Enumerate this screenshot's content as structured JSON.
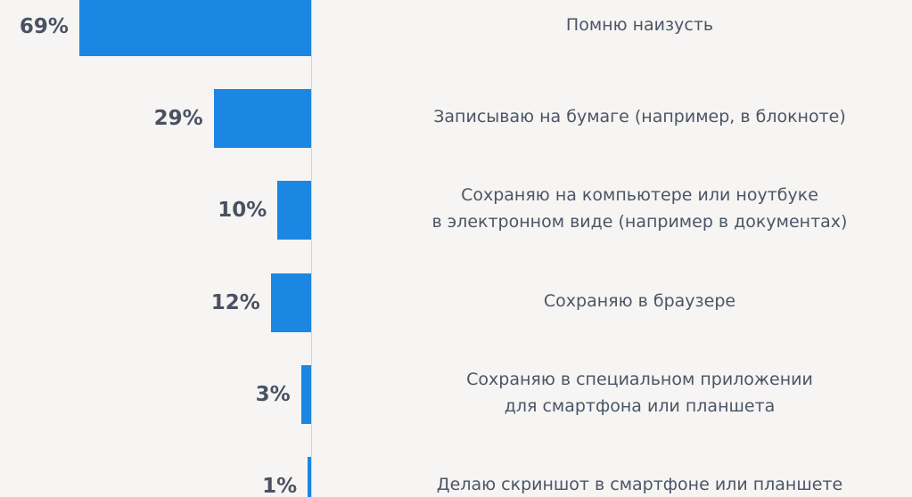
{
  "chart_data": {
    "type": "bar",
    "orientation": "horizontal",
    "color": "#1b87e3",
    "categories": [
      "Помню наизусть",
      "Записываю на бумаге (например, в блокноте)",
      "Сохраняю на компьютере или ноутбуке\nв электронном виде (например в документах)",
      "Сохраняю в браузере",
      "Сохраняю в специальном приложении\nдля смартфона или планшета",
      "Делаю скриншот в смартфоне или планшете"
    ],
    "values": [
      69,
      29,
      10,
      12,
      3,
      1
    ],
    "value_labels": [
      "69%",
      "29%",
      "10%",
      "12%",
      "3%",
      "1%"
    ]
  }
}
